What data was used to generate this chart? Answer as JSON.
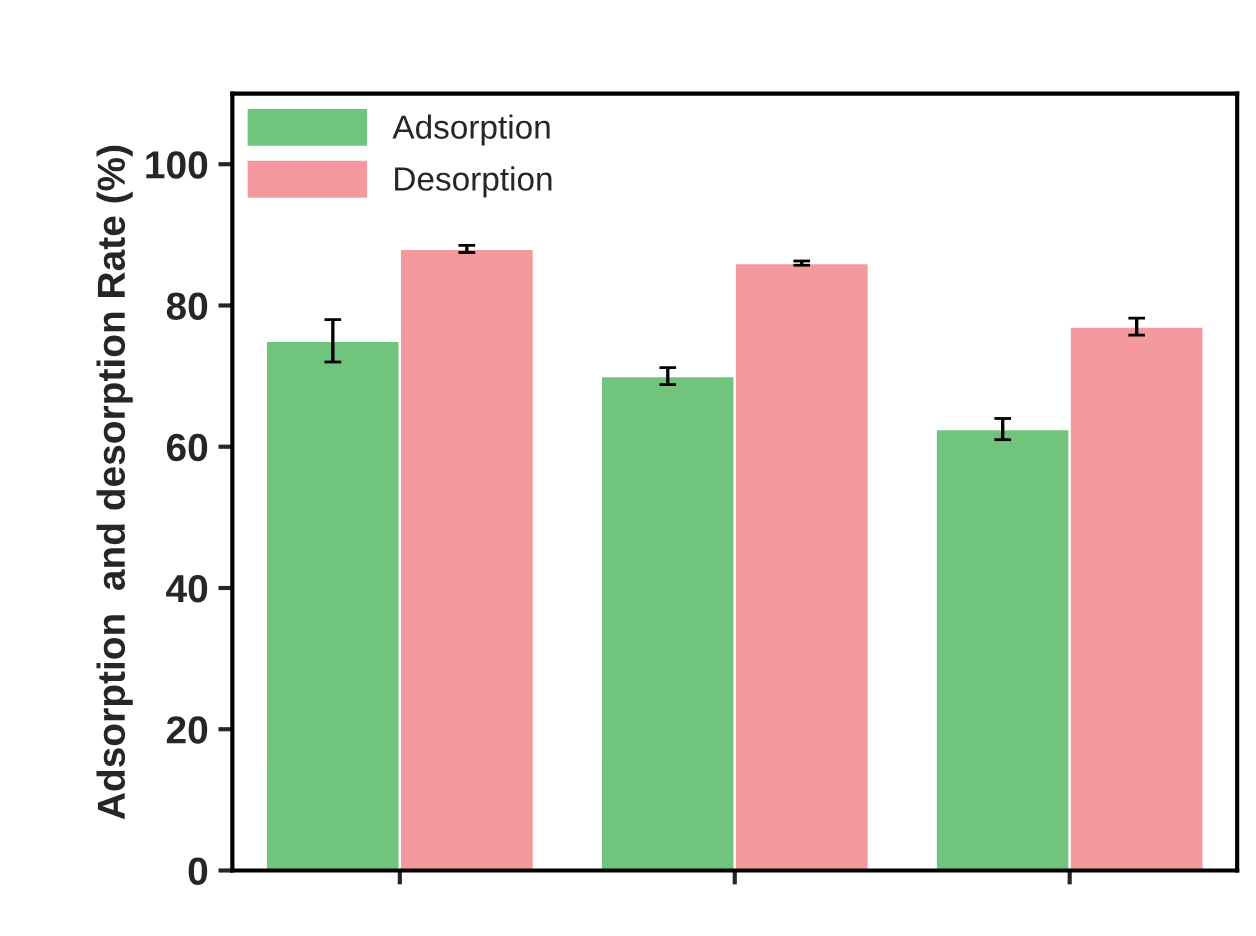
{
  "chart_data": {
    "type": "bar",
    "ylabel": "Adsorption  and desorption Rate (%)",
    "categories": [
      null,
      null,
      null
    ],
    "series": [
      {
        "name": "Adsorption",
        "color": "#70c47c",
        "values": [
          75,
          70,
          62.5
        ],
        "errors": [
          3,
          1.2,
          1.5
        ]
      },
      {
        "name": "Desorption",
        "color": "#f49a9f",
        "values": [
          88,
          86,
          77
        ],
        "errors": [
          0.5,
          0.3,
          1.2
        ]
      }
    ],
    "ylim": [
      0,
      110
    ],
    "yticks": [
      0,
      20,
      40,
      60,
      80,
      100
    ],
    "legend": "top left",
    "grid": false
  }
}
